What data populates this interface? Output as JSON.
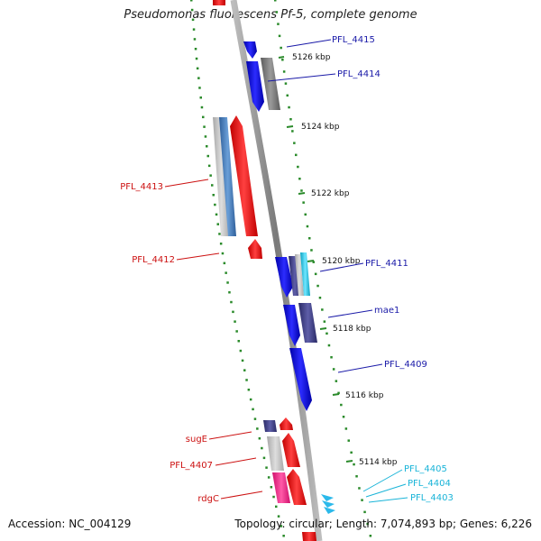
{
  "title": "Pseudomonas fluorescens Pf-5, complete genome",
  "accession": "Accession: NC_004129",
  "summary": "Topology: circular; Length: 7,074,893 bp; Genes: 6,226",
  "colors": {
    "backbone": "#8a8a8a",
    "forward": "#1010e6",
    "reverse": "#ee1010",
    "tick": "#2a8a2a",
    "label_forward": "#1a1aa8",
    "label_reverse": "#cc1111",
    "label_small": "#19b4d8"
  },
  "scale": {
    "unit": "kbp",
    "labels": [
      "5126 kbp",
      "5124 kbp",
      "5122 kbp",
      "5120 kbp",
      "5118 kbp",
      "5116 kbp",
      "5114 kbp"
    ]
  },
  "genes": [
    {
      "name": "PFL_4415",
      "strand": "forward"
    },
    {
      "name": "PFL_4414",
      "strand": "forward"
    },
    {
      "name": "PFL_4413",
      "strand": "reverse"
    },
    {
      "name": "PFL_4412",
      "strand": "reverse"
    },
    {
      "name": "PFL_4411",
      "strand": "forward"
    },
    {
      "name": "mae1",
      "strand": "forward"
    },
    {
      "name": "PFL_4409",
      "strand": "forward"
    },
    {
      "name": "sugE",
      "strand": "reverse"
    },
    {
      "name": "PFL_4407",
      "strand": "reverse"
    },
    {
      "name": "rdgC",
      "strand": "reverse"
    },
    {
      "name": "PFL_4405",
      "strand": "forward"
    },
    {
      "name": "PFL_4404",
      "strand": "forward"
    },
    {
      "name": "PFL_4403",
      "strand": "forward"
    }
  ]
}
